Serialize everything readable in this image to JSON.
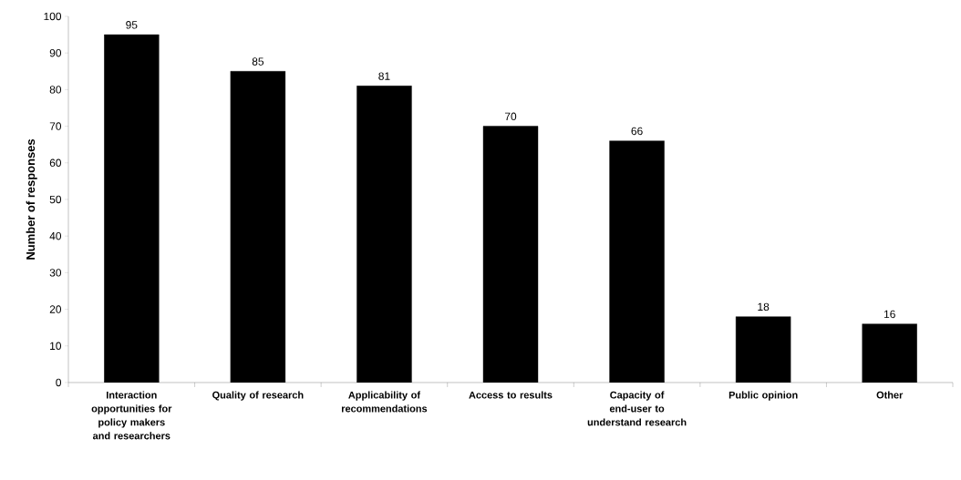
{
  "chart_data": {
    "type": "bar",
    "ylabel": "Number of responses",
    "categories": [
      "Interaction opportunities for policy makers and researchers",
      "Quality of research",
      "Applicability of recommendations",
      "Access to results",
      "Capacity of end-user to understand research",
      "Public opinion",
      "Other"
    ],
    "values": [
      95,
      85,
      81,
      70,
      66,
      18,
      16
    ],
    "color": "#000000",
    "ylim": [
      0,
      100
    ],
    "yticks": [
      0,
      10,
      20,
      30,
      40,
      50,
      60,
      70,
      80,
      90,
      100
    ],
    "data_labels": true
  }
}
